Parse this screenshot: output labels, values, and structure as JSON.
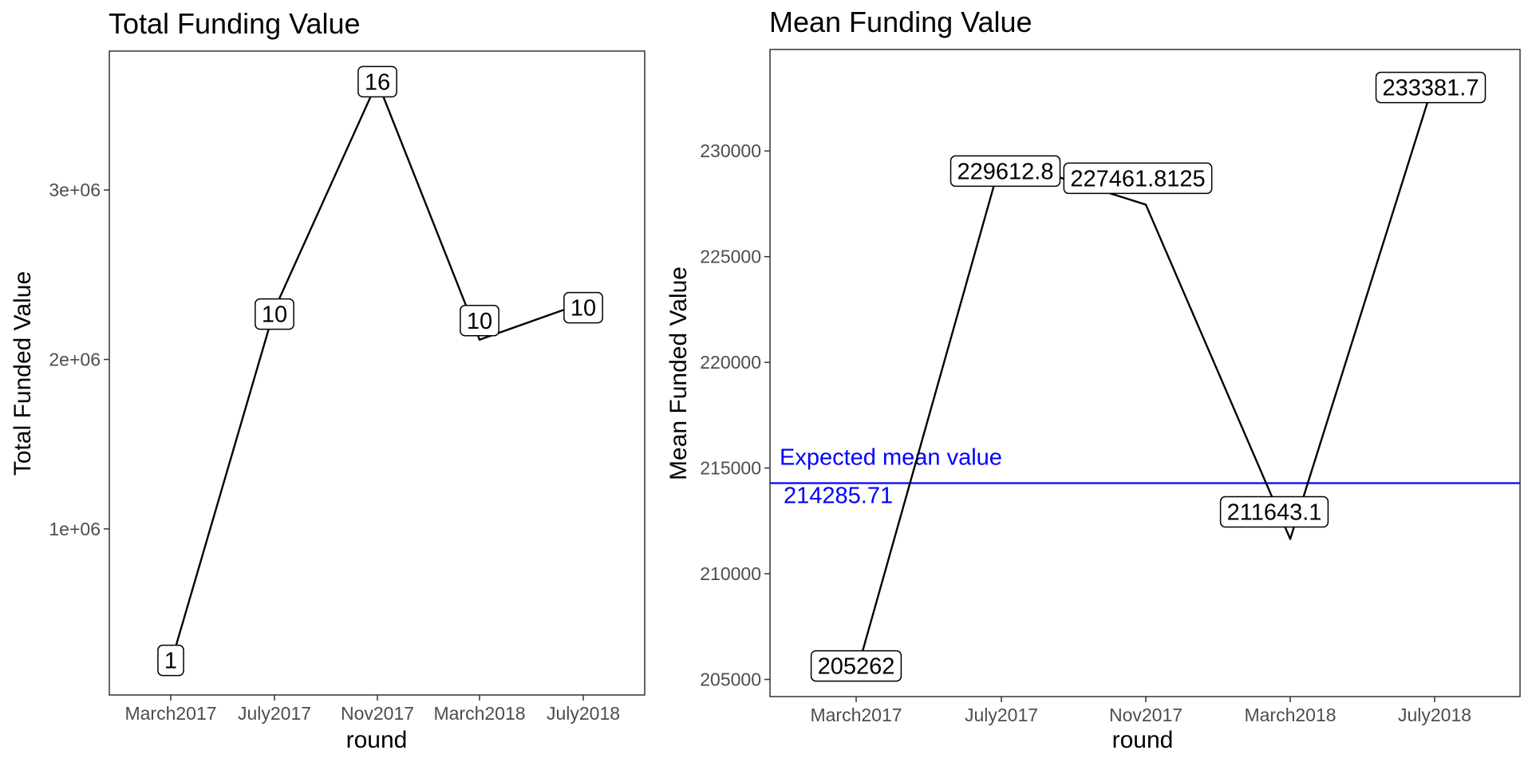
{
  "chart_data": [
    {
      "type": "line",
      "title": "Total Funding Value",
      "xlabel": "round",
      "ylabel": "Total Funded Value",
      "categories": [
        "March2017",
        "July2017",
        "Nov2017",
        "March2018",
        "July2018"
      ],
      "values": [
        205262,
        2296128,
        3639389,
        2116431,
        2333817
      ],
      "point_labels": [
        "1",
        "10",
        "16",
        "10",
        "10"
      ],
      "yticks": [
        {
          "value": 1000000,
          "label": "1e+06"
        },
        {
          "value": 2000000,
          "label": "2e+06"
        },
        {
          "value": 3000000,
          "label": "3e+06"
        }
      ],
      "ylim": [
        20000,
        3820000
      ],
      "grid": false,
      "legend": "none"
    },
    {
      "type": "line",
      "title": "Mean Funding Value",
      "xlabel": "round",
      "ylabel": "Mean Funded Value",
      "categories": [
        "March2017",
        "July2017",
        "Nov2017",
        "March2018",
        "July2018"
      ],
      "values": [
        205262,
        229612.8,
        227461.8125,
        211643.1,
        233381.7
      ],
      "point_labels": [
        "205262",
        "229612.8",
        "227461.8125",
        "211643.1",
        "233381.7"
      ],
      "yticks": [
        {
          "value": 205000,
          "label": "205000"
        },
        {
          "value": 210000,
          "label": "210000"
        },
        {
          "value": 215000,
          "label": "215000"
        },
        {
          "value": 220000,
          "label": "220000"
        },
        {
          "value": 225000,
          "label": "225000"
        },
        {
          "value": 230000,
          "label": "230000"
        }
      ],
      "ylim": [
        204190,
        234800
      ],
      "reference_line": {
        "value": 214285.71,
        "label": "Expected mean value",
        "value_label": "214285.71",
        "color": "#0000ff"
      },
      "grid": false,
      "legend": "none"
    }
  ]
}
